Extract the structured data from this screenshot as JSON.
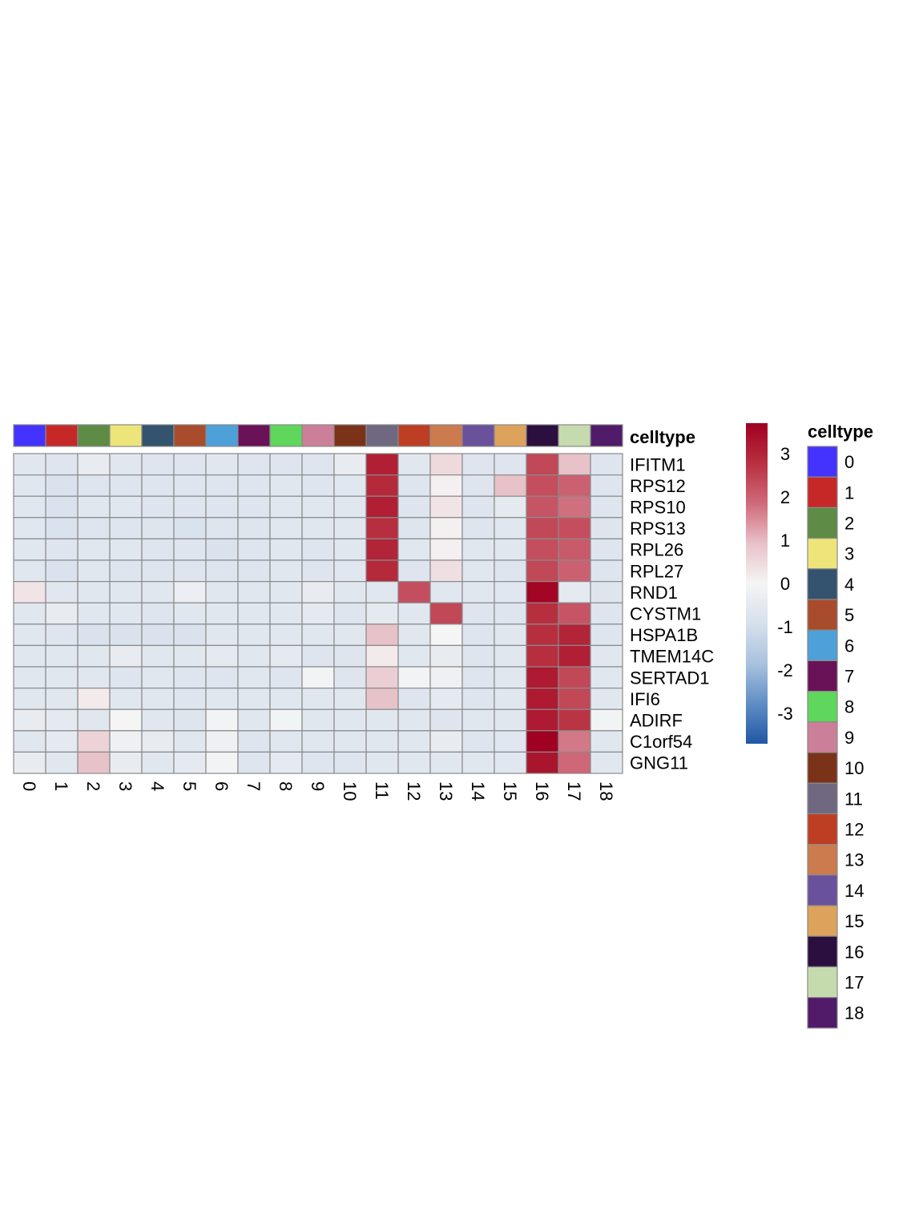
{
  "chart_data": {
    "type": "heatmap",
    "columns": [
      "0",
      "1",
      "2",
      "3",
      "4",
      "5",
      "6",
      "7",
      "8",
      "9",
      "10",
      "11",
      "12",
      "13",
      "14",
      "15",
      "16",
      "17",
      "18"
    ],
    "rows": [
      "IFITM1",
      "RPS12",
      "RPS10",
      "RPS13",
      "RPL26",
      "RPL27",
      "RND1",
      "CYSTM1",
      "HSPA1B",
      "TMEM14C",
      "SERTAD1",
      "IFI6",
      "ADIRF",
      "C1orf54",
      "GNG11"
    ],
    "values": [
      [
        -0.6,
        -0.7,
        -0.4,
        -0.6,
        -0.7,
        -0.7,
        -0.6,
        -0.7,
        -0.7,
        -0.7,
        -0.4,
        3.1,
        -0.6,
        0.5,
        -0.7,
        -0.7,
        2.4,
        0.9,
        -0.7
      ],
      [
        -0.6,
        -0.8,
        -0.7,
        -0.7,
        -0.7,
        -0.7,
        -0.7,
        -0.7,
        -0.6,
        -0.7,
        -0.6,
        2.9,
        -0.7,
        0.1,
        -0.7,
        0.9,
        2.3,
        2.0,
        -0.7
      ],
      [
        -0.6,
        -0.8,
        -0.6,
        -0.6,
        -0.7,
        -0.7,
        -0.7,
        -0.7,
        -0.6,
        -0.6,
        -0.6,
        3.1,
        -0.7,
        0.3,
        -0.7,
        -0.5,
        2.2,
        1.8,
        -0.7
      ],
      [
        -0.6,
        -0.8,
        -0.7,
        -0.7,
        -0.7,
        -0.8,
        -0.7,
        -0.7,
        -0.6,
        -0.6,
        -0.6,
        2.8,
        -0.7,
        0.1,
        -0.7,
        -0.6,
        2.4,
        2.3,
        -0.7
      ],
      [
        -0.6,
        -0.7,
        -0.6,
        -0.6,
        -0.7,
        -0.7,
        -0.8,
        -0.7,
        -0.6,
        -0.7,
        -0.6,
        3.0,
        -0.6,
        0.1,
        -0.6,
        -0.6,
        2.3,
        2.1,
        -0.7
      ],
      [
        -0.6,
        -0.8,
        -0.6,
        -0.7,
        -0.7,
        -0.7,
        -0.7,
        -0.7,
        -0.6,
        -0.7,
        -0.6,
        2.9,
        -0.7,
        0.4,
        -0.6,
        -0.7,
        2.4,
        2.0,
        -0.7
      ],
      [
        0.3,
        -0.6,
        -0.6,
        -0.6,
        -0.6,
        -0.3,
        -0.6,
        -0.6,
        -0.6,
        -0.4,
        -0.6,
        -0.6,
        2.3,
        -0.6,
        -0.6,
        -0.6,
        3.6,
        -0.5,
        -0.7
      ],
      [
        -0.6,
        -0.4,
        -0.6,
        -0.6,
        -0.7,
        -0.6,
        -0.6,
        -0.6,
        -0.6,
        -0.5,
        -0.7,
        -0.5,
        -0.6,
        2.4,
        -0.7,
        -0.7,
        2.8,
        2.2,
        -0.7
      ],
      [
        -0.6,
        -0.7,
        -0.8,
        -0.8,
        -0.8,
        -0.8,
        -0.6,
        -0.6,
        -0.6,
        -0.6,
        -0.6,
        0.9,
        -0.6,
        0.0,
        -0.7,
        -0.6,
        2.8,
        3.0,
        -0.7
      ],
      [
        -0.6,
        -0.6,
        -0.6,
        -0.4,
        -0.6,
        -0.6,
        -0.5,
        -0.6,
        -0.5,
        -0.7,
        -0.7,
        0.2,
        -0.6,
        -0.4,
        -0.7,
        -0.6,
        2.8,
        3.1,
        -0.6
      ],
      [
        -0.6,
        -0.6,
        -0.6,
        -0.7,
        -0.6,
        -0.7,
        -0.7,
        -0.6,
        -0.7,
        -0.1,
        -0.7,
        0.7,
        -0.1,
        -0.2,
        -0.7,
        -0.6,
        3.2,
        2.4,
        -0.6
      ],
      [
        -0.6,
        -0.6,
        0.2,
        -0.6,
        -0.6,
        -0.7,
        -0.6,
        -0.6,
        -0.6,
        -0.6,
        -0.6,
        0.9,
        -0.7,
        -0.5,
        -0.7,
        -0.6,
        3.2,
        2.4,
        -0.6
      ],
      [
        -0.4,
        -0.5,
        -0.6,
        0.0,
        -0.6,
        -0.7,
        -0.1,
        -0.6,
        -0.1,
        -0.6,
        -0.6,
        -0.6,
        -0.6,
        -0.7,
        -0.6,
        -0.6,
        3.2,
        2.7,
        -0.1
      ],
      [
        -0.6,
        -0.5,
        0.6,
        -0.2,
        -0.4,
        -0.6,
        -0.2,
        -0.7,
        -0.6,
        -0.6,
        -0.6,
        -0.6,
        -0.6,
        -0.4,
        -0.7,
        -0.6,
        3.7,
        1.7,
        -0.6
      ],
      [
        -0.4,
        -0.6,
        0.9,
        -0.4,
        -0.6,
        -0.5,
        -0.1,
        -0.7,
        -0.5,
        -0.7,
        -0.7,
        -0.6,
        -0.6,
        -0.6,
        -0.6,
        -0.6,
        3.3,
        1.9,
        -0.6
      ]
    ],
    "color_scale": {
      "min": -3.7,
      "max": 3.7,
      "ticks": [
        -3,
        -2,
        -1,
        0,
        1,
        2,
        3
      ],
      "tick_labels": [
        "-3",
        "-2",
        "-1",
        "0",
        "1",
        "2",
        "3"
      ],
      "stops": [
        "#2156a5",
        "#5f8ec5",
        "#a9c2de",
        "#d6e0ec",
        "#f5f5f5",
        "#e8c1c8",
        "#cf6a7a",
        "#b8303f",
        "#a00021"
      ]
    },
    "annotation": {
      "title": "celltype",
      "legend_title": "celltype",
      "categories": [
        "0",
        "1",
        "2",
        "3",
        "4",
        "5",
        "6",
        "7",
        "8",
        "9",
        "10",
        "11",
        "12",
        "13",
        "14",
        "15",
        "16",
        "17",
        "18"
      ],
      "colors": [
        "#4433ff",
        "#c62828",
        "#5e8b45",
        "#ede57a",
        "#34536f",
        "#a84c2c",
        "#4ea0d8",
        "#6a1257",
        "#5fd65c",
        "#cc7f98",
        "#7a3219",
        "#6f6880",
        "#bd3e23",
        "#cc7b4e",
        "#6a519b",
        "#dda25c",
        "#2b0f3e",
        "#c5dbae",
        "#511b6a"
      ]
    }
  }
}
